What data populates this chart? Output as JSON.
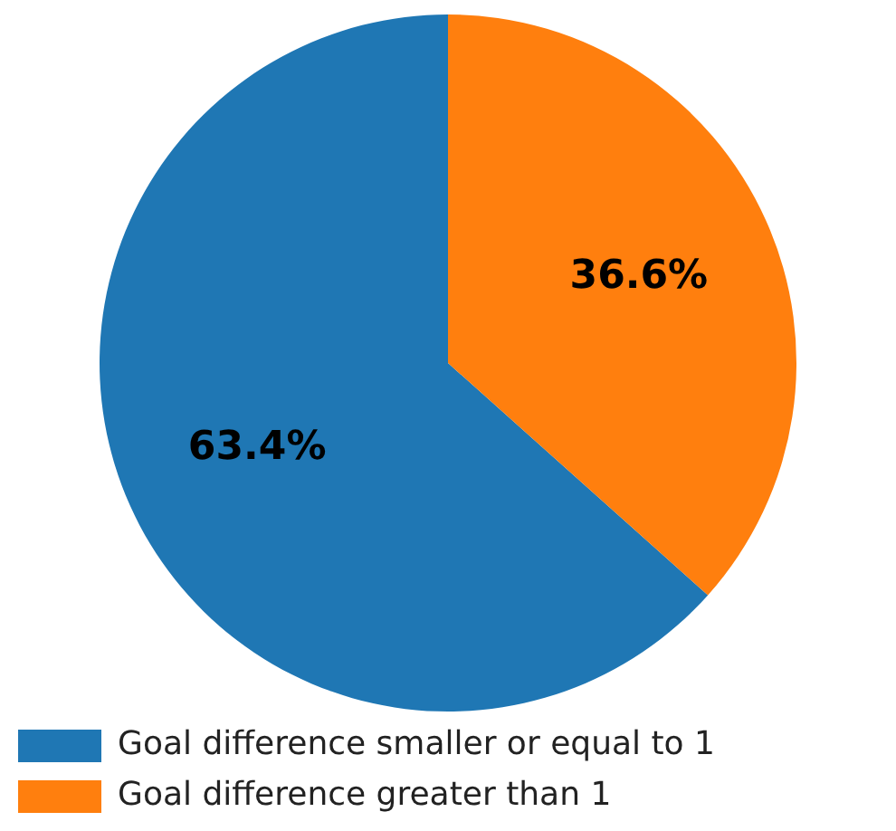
{
  "chart_data": {
    "type": "pie",
    "categories": [
      "Goal difference smaller or equal to 1",
      "Goal difference greater than 1"
    ],
    "values": [
      63.4,
      36.6
    ],
    "colors": [
      "#1f77b4",
      "#ff7f0e"
    ],
    "value_labels": [
      "63.4%",
      "36.6%"
    ],
    "legend": "bottom"
  }
}
